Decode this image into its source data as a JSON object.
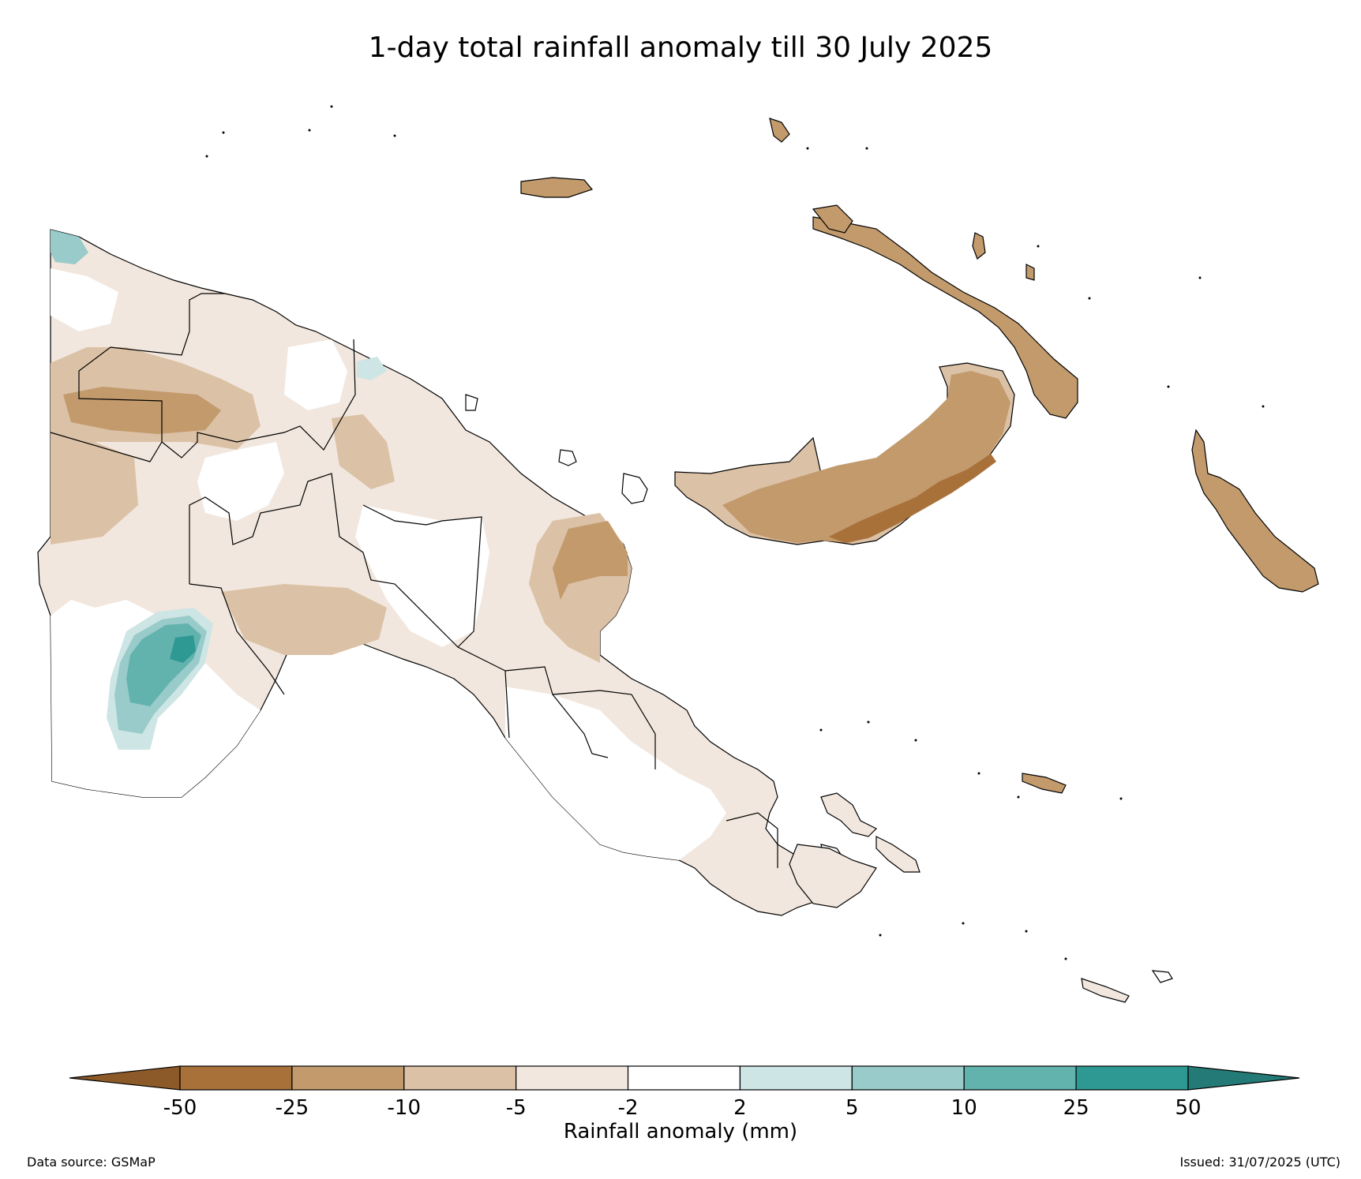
{
  "title": "1-day total rainfall anomaly till 30 July 2025",
  "legend": {
    "label": "Rainfall anomaly (mm)",
    "ticks": [
      "-50",
      "-25",
      "-10",
      "-5",
      "-2",
      "2",
      "5",
      "10",
      "25",
      "50"
    ],
    "colors": [
      "#8c5a28",
      "#a8713a",
      "#c29a6c",
      "#dbc1a6",
      "#f1e7de",
      "#ffffff",
      "#cde5e4",
      "#98cbc9",
      "#62b2ae",
      "#2e9893",
      "#237a76"
    ],
    "extend": "both"
  },
  "footer": {
    "source": "Data source: GSMaP",
    "issued": "Issued: 31/07/2025 (UTC)"
  },
  "map": {
    "region": "Papua New Guinea",
    "fills": {
      "white": "#ffffff",
      "light_brown": "#f1e7de",
      "brown": "#dbc1a6",
      "dark_brown": "#c29a6c",
      "darker_brown": "#a8713a",
      "light_teal": "#cde5e4",
      "teal": "#98cbc9",
      "mid_teal": "#62b2ae",
      "dark_teal": "#2e9893"
    },
    "outline": "#000000"
  }
}
